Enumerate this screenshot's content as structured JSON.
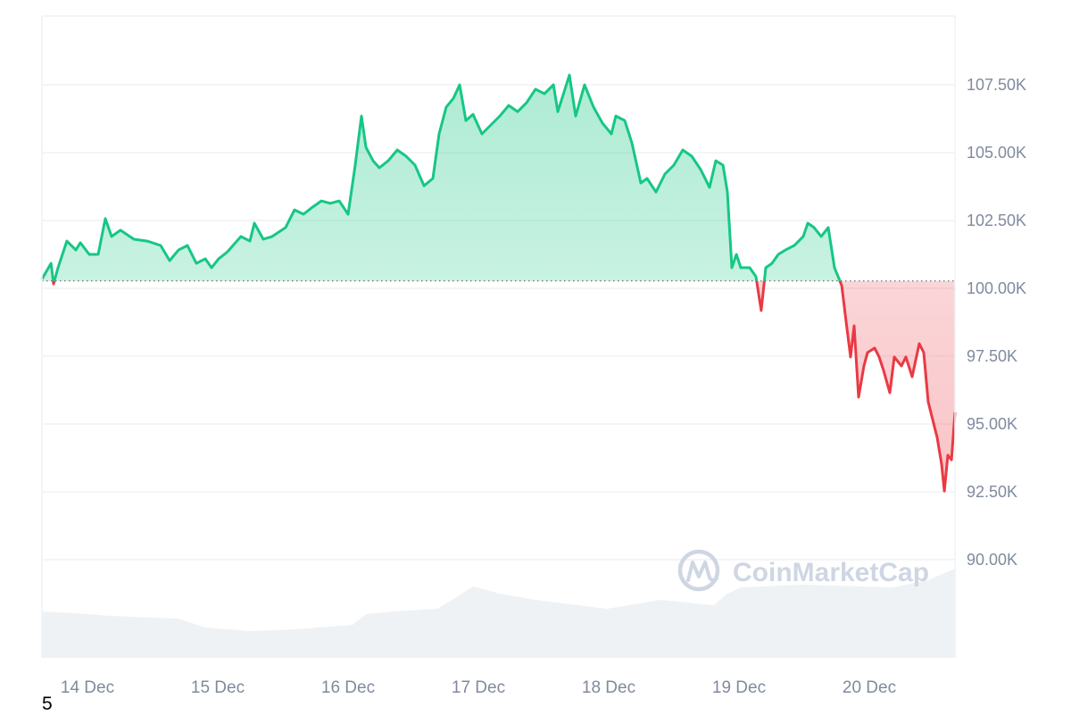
{
  "chart_data": {
    "type": "area",
    "title": "",
    "xlabel": "",
    "ylabel": "",
    "ylim": [
      86.5,
      110
    ],
    "yticks": [
      "90.00K",
      "92.50K",
      "95.00K",
      "97.50K",
      "100.00K",
      "102.50K",
      "105.00K",
      "107.50K"
    ],
    "ytick_values": [
      90,
      92.5,
      95,
      97.5,
      100,
      102.5,
      105,
      107.5
    ],
    "xticks": [
      "14 Dec",
      "15 Dec",
      "16 Dec",
      "17 Dec",
      "18 Dec",
      "19 Dec",
      "20 Dec"
    ],
    "unit": "K",
    "baseline": 100.27,
    "grid": true,
    "colors": {
      "up": "#16c784",
      "down": "#ea3943",
      "volume": "#eff2f5",
      "grid": "#eff2f5",
      "axis_text": "#808a9d"
    },
    "price": [
      [
        "13 Dec 15:35",
        100.33
      ],
      [
        "13 Dec 17:18",
        100.92
      ],
      [
        "13 Dec 17:45",
        100.16
      ],
      [
        "13 Dec 18:35",
        100.76
      ],
      [
        "13 Dec 20:12",
        101.74
      ],
      [
        "13 Dec 21:52",
        101.41
      ],
      [
        "13 Dec 22:41",
        101.68
      ],
      [
        "14 Dec 00:20",
        101.25
      ],
      [
        "14 Dec 01:58",
        101.25
      ],
      [
        "14 Dec 03:17",
        102.57
      ],
      [
        "14 Dec 04:26",
        101.91
      ],
      [
        "14 Dec 06:05",
        102.14
      ],
      [
        "14 Dec 08:33",
        101.81
      ],
      [
        "14 Dec 11:01",
        101.74
      ],
      [
        "14 Dec 13:29",
        101.58
      ],
      [
        "14 Dec 15:08",
        101.02
      ],
      [
        "14 Dec 16:46",
        101.41
      ],
      [
        "14 Dec 18:25",
        101.58
      ],
      [
        "14 Dec 20:03",
        100.92
      ],
      [
        "14 Dec 21:42",
        101.09
      ],
      [
        "14 Dec 22:51",
        100.76
      ],
      [
        "15 Dec 00:10",
        101.09
      ],
      [
        "15 Dec 01:48",
        101.35
      ],
      [
        "15 Dec 04:16",
        101.91
      ],
      [
        "15 Dec 05:55",
        101.74
      ],
      [
        "15 Dec 06:44",
        102.4
      ],
      [
        "15 Dec 08:23",
        101.81
      ],
      [
        "15 Dec 10:02",
        101.91
      ],
      [
        "15 Dec 12:30",
        102.24
      ],
      [
        "15 Dec 14:08",
        102.89
      ],
      [
        "15 Dec 15:47",
        102.73
      ],
      [
        "15 Dec 17:26",
        102.99
      ],
      [
        "15 Dec 19:04",
        103.22
      ],
      [
        "15 Dec 20:43",
        103.13
      ],
      [
        "15 Dec 22:22",
        103.22
      ],
      [
        "16 Dec 00:00",
        102.73
      ],
      [
        "16 Dec 01:19",
        104.54
      ],
      [
        "16 Dec 02:28",
        106.35
      ],
      [
        "16 Dec 03:17",
        105.2
      ],
      [
        "16 Dec 04:36",
        104.7
      ],
      [
        "16 Dec 05:45",
        104.44
      ],
      [
        "16 Dec 07:24",
        104.7
      ],
      [
        "16 Dec 09:03",
        105.1
      ],
      [
        "16 Dec 10:41",
        104.87
      ],
      [
        "16 Dec 12:20",
        104.54
      ],
      [
        "16 Dec 13:59",
        103.78
      ],
      [
        "16 Dec 15:37",
        104.05
      ],
      [
        "16 Dec 16:46",
        105.69
      ],
      [
        "16 Dec 18:05",
        106.68
      ],
      [
        "16 Dec 19:24",
        107.0
      ],
      [
        "16 Dec 20:33",
        107.5
      ],
      [
        "16 Dec 21:42",
        106.18
      ],
      [
        "16 Dec 23:01",
        106.41
      ],
      [
        "17 Dec 00:39",
        105.69
      ],
      [
        "17 Dec 02:18",
        106.02
      ],
      [
        "17 Dec 03:57",
        106.35
      ],
      [
        "17 Dec 05:35",
        106.74
      ],
      [
        "17 Dec 07:14",
        106.51
      ],
      [
        "17 Dec 08:53",
        106.84
      ],
      [
        "17 Dec 10:31",
        107.34
      ],
      [
        "17 Dec 12:10",
        107.17
      ],
      [
        "17 Dec 13:49",
        107.5
      ],
      [
        "17 Dec 14:38",
        106.51
      ],
      [
        "17 Dec 16:46",
        107.86
      ],
      [
        "17 Dec 17:55",
        106.35
      ],
      [
        "17 Dec 19:34",
        107.5
      ],
      [
        "17 Dec 21:12",
        106.68
      ],
      [
        "17 Dec 22:51",
        106.09
      ],
      [
        "18 Dec 00:30",
        105.69
      ],
      [
        "18 Dec 01:19",
        106.35
      ],
      [
        "18 Dec 02:58",
        106.18
      ],
      [
        "18 Dec 04:16",
        105.36
      ],
      [
        "18 Dec 05:55",
        103.88
      ],
      [
        "18 Dec 07:04",
        104.05
      ],
      [
        "18 Dec 08:43",
        103.55
      ],
      [
        "18 Dec 10:21",
        104.21
      ],
      [
        "18 Dec 12:00",
        104.54
      ],
      [
        "18 Dec 13:39",
        105.1
      ],
      [
        "18 Dec 15:17",
        104.87
      ],
      [
        "18 Dec 16:56",
        104.38
      ],
      [
        "18 Dec 18:35",
        103.72
      ],
      [
        "18 Dec 19:44",
        104.7
      ],
      [
        "18 Dec 21:03",
        104.54
      ],
      [
        "18 Dec 21:52",
        103.55
      ],
      [
        "18 Dec 22:41",
        100.76
      ],
      [
        "18 Dec 23:31",
        101.25
      ],
      [
        "19 Dec 00:20",
        100.76
      ],
      [
        "19 Dec 01:58",
        100.76
      ],
      [
        "19 Dec 03:07",
        100.43
      ],
      [
        "19 Dec 04:06",
        99.18
      ],
      [
        "19 Dec 04:56",
        100.76
      ],
      [
        "19 Dec 06:05",
        100.92
      ],
      [
        "19 Dec 07:14",
        101.25
      ],
      [
        "19 Dec 08:33",
        101.41
      ],
      [
        "19 Dec 10:12",
        101.58
      ],
      [
        "19 Dec 11:50",
        101.91
      ],
      [
        "19 Dec 12:40",
        102.4
      ],
      [
        "19 Dec 13:49",
        102.24
      ],
      [
        "19 Dec 15:08",
        101.91
      ],
      [
        "19 Dec 16:26",
        102.24
      ],
      [
        "19 Dec 17:35",
        100.76
      ],
      [
        "19 Dec 18:25",
        100.36
      ],
      [
        "19 Dec 18:55",
        100.1
      ],
      [
        "19 Dec 19:44",
        98.78
      ],
      [
        "19 Dec 20:33",
        97.47
      ],
      [
        "19 Dec 21:12",
        98.62
      ],
      [
        "19 Dec 22:02",
        95.99
      ],
      [
        "19 Dec 23:01",
        97.14
      ],
      [
        "19 Dec 23:40",
        97.63
      ],
      [
        "20 Dec 00:59",
        97.8
      ],
      [
        "20 Dec 01:48",
        97.47
      ],
      [
        "20 Dec 02:38",
        96.97
      ],
      [
        "20 Dec 03:47",
        96.15
      ],
      [
        "20 Dec 04:36",
        97.47
      ],
      [
        "20 Dec 05:55",
        97.14
      ],
      [
        "20 Dec 06:44",
        97.47
      ],
      [
        "20 Dec 07:53",
        96.74
      ],
      [
        "20 Dec 09:12",
        97.96
      ],
      [
        "20 Dec 10:02",
        97.63
      ],
      [
        "20 Dec 10:51",
        95.82
      ],
      [
        "20 Dec 11:40",
        95.16
      ],
      [
        "20 Dec 12:30",
        94.51
      ],
      [
        "20 Dec 13:19",
        93.52
      ],
      [
        "20 Dec 13:49",
        92.53
      ],
      [
        "20 Dec 14:28",
        93.85
      ],
      [
        "20 Dec 15:08",
        93.68
      ],
      [
        "20 Dec 15:47",
        95.43
      ]
    ],
    "volume_relative": [
      [
        "13 Dec 15:35",
        52
      ],
      [
        "13 Dec 21:52",
        50
      ],
      [
        "14 Dec 04:26",
        47
      ],
      [
        "14 Dec 16:46",
        44
      ],
      [
        "14 Dec 21:42",
        34
      ],
      [
        "15 Dec 05:55",
        30
      ],
      [
        "15 Dec 14:08",
        32
      ],
      [
        "16 Dec 00:49",
        37
      ],
      [
        "16 Dec 03:17",
        49
      ],
      [
        "16 Dec 08:14",
        52
      ],
      [
        "16 Dec 16:28",
        55
      ],
      [
        "16 Dec 23:01",
        80
      ],
      [
        "17 Dec 03:57",
        72
      ],
      [
        "17 Dec 10:31",
        65
      ],
      [
        "17 Dec 23:40",
        55
      ],
      [
        "18 Dec 09:32",
        65
      ],
      [
        "18 Dec 19:24",
        59
      ],
      [
        "18 Dec 21:52",
        72
      ],
      [
        "19 Dec 00:20",
        79
      ],
      [
        "19 Dec 11:50",
        82
      ],
      [
        "20 Dec 04:16",
        79
      ],
      [
        "20 Dec 10:51",
        87
      ],
      [
        "20 Dec 15:47",
        100
      ]
    ]
  },
  "watermark": "CoinMarketCap",
  "footnote": "5"
}
